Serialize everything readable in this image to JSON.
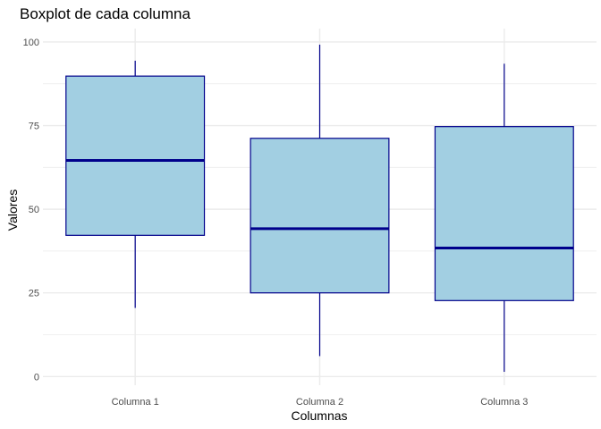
{
  "chart_data": {
    "type": "boxplot",
    "title": "Boxplot de cada columna",
    "xlabel": "Columnas",
    "ylabel": "Valores",
    "ylim": [
      -2.6,
      104
    ],
    "yticks": [
      0,
      25,
      50,
      75,
      100
    ],
    "y_minor_grid": [
      12.5,
      37.5,
      62.5,
      87.5
    ],
    "categories": [
      "Columna 1",
      "Columna 2",
      "Columna 3"
    ],
    "boxes": [
      {
        "min": 20.5,
        "q1": 42.2,
        "median": 64.6,
        "q3": 89.8,
        "max": 94.4
      },
      {
        "min": 6.1,
        "q1": 25.0,
        "median": 44.2,
        "q3": 71.2,
        "max": 99.2
      },
      {
        "min": 1.4,
        "q1": 22.7,
        "median": 38.4,
        "q3": 74.7,
        "max": 93.5
      }
    ],
    "grid": true,
    "colors": {
      "box_fill": "#a2cfe2",
      "box_stroke": "#00008b",
      "median": "#00008b",
      "grid": "#ebebeb"
    }
  }
}
